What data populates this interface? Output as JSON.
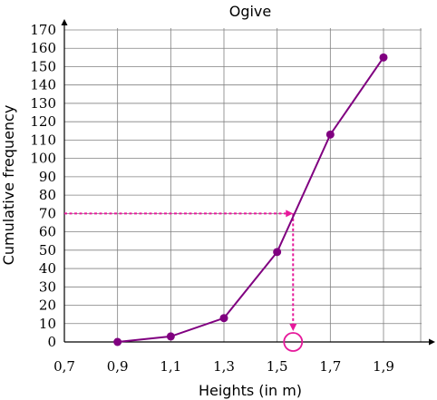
{
  "chart_data": {
    "type": "line",
    "title": "Ogive",
    "xlabel": "Heights (in m)",
    "ylabel": "Cumulative frequency",
    "xlim": [
      0.7,
      2.05
    ],
    "ylim": [
      0,
      170
    ],
    "xticks": [
      0.7,
      0.9,
      1.1,
      1.3,
      1.5,
      1.7,
      1.9
    ],
    "xtick_labels": [
      "0,7",
      "0,9",
      "1,1",
      "1,3",
      "1,5",
      "1,7",
      "1,9"
    ],
    "yticks": [
      0,
      10,
      20,
      30,
      40,
      50,
      60,
      70,
      80,
      90,
      100,
      110,
      120,
      130,
      140,
      150,
      160,
      170
    ],
    "ytick_labels": [
      "0",
      "10",
      "20",
      "30",
      "40",
      "50",
      "60",
      "70",
      "80",
      "90",
      "100",
      "110",
      "120",
      "130",
      "140",
      "150",
      "160",
      "170"
    ],
    "grid": true,
    "series": [
      {
        "x": [
          0.9,
          1.1,
          1.3,
          1.5,
          1.7,
          1.9
        ],
        "y": [
          0,
          3,
          13,
          49,
          113,
          155
        ]
      }
    ],
    "annotation": {
      "y": 70,
      "x": 1.56
    },
    "colors": {
      "series": "#800080",
      "annotation": "#e6199b",
      "grid": "#808080",
      "axis": "#000000"
    }
  }
}
